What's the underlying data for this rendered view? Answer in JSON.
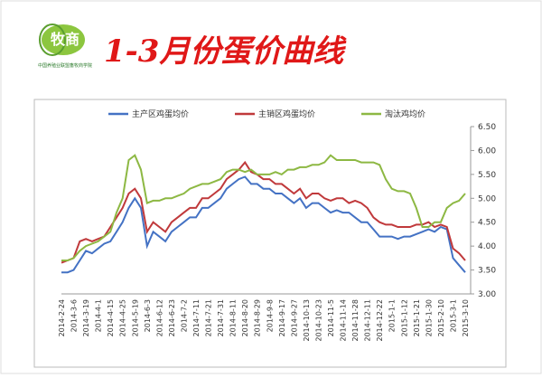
{
  "header": {
    "logo_text": "牧商",
    "logo_subtitle": "中国养殖业联盟畜牧商学院",
    "title": "1-3月份蛋价曲线"
  },
  "chart_data": {
    "type": "line",
    "categories": [
      "2014-2-24",
      null,
      "2014-3-6",
      null,
      "2014-3-19",
      null,
      "2014-4-1",
      null,
      "2014-4-15",
      null,
      "2014-4-25",
      null,
      "2014-5-19",
      null,
      "2014-6-3",
      null,
      "2014-6-12",
      null,
      "2014-6-23",
      null,
      "2014-7-2",
      null,
      "2014-7-11",
      null,
      "2014-7-21",
      null,
      "2014-7-31",
      null,
      "2014-8-11",
      null,
      "2014-8-20",
      null,
      "2014-8-29",
      null,
      "2014-9-8",
      null,
      "2014-9-17",
      null,
      "2014-9-27",
      null,
      "2014-10-13",
      null,
      "2014-10-23",
      null,
      "2014-11-5",
      null,
      "2014-11-14",
      null,
      "2014-11-28",
      null,
      "2014-12-11",
      null,
      "2014-12-22",
      null,
      "2015-1-1",
      null,
      "2015-1-12",
      null,
      "2015-1-21",
      null,
      "2015-1-30",
      null,
      "2015-2-10",
      null,
      "2015-3-1",
      null,
      "2015-3-10"
    ],
    "series": [
      {
        "name": "主产区鸡蛋均价",
        "color": "#4472c4",
        "values": [
          3.45,
          3.45,
          3.5,
          3.7,
          3.9,
          3.85,
          3.95,
          4.05,
          4.1,
          4.3,
          4.5,
          4.8,
          5.0,
          4.8,
          4.0,
          4.3,
          4.2,
          4.1,
          4.3,
          4.4,
          4.5,
          4.6,
          4.6,
          4.8,
          4.8,
          4.9,
          5.0,
          5.2,
          5.3,
          5.4,
          5.45,
          5.3,
          5.3,
          5.2,
          5.2,
          5.1,
          5.1,
          5.0,
          4.9,
          5.0,
          4.8,
          4.9,
          4.9,
          4.8,
          4.7,
          4.75,
          4.7,
          4.7,
          4.6,
          4.5,
          4.5,
          4.35,
          4.2,
          4.2,
          4.2,
          4.15,
          4.2,
          4.2,
          4.25,
          4.3,
          4.35,
          4.3,
          4.4,
          4.35,
          3.75,
          3.6,
          3.45
        ]
      },
      {
        "name": "主销区鸡蛋均价",
        "color": "#c0393b",
        "values": [
          3.65,
          3.7,
          3.75,
          4.1,
          4.15,
          4.1,
          4.15,
          4.2,
          4.4,
          4.6,
          4.8,
          5.1,
          5.2,
          5.0,
          4.3,
          4.5,
          4.4,
          4.3,
          4.5,
          4.6,
          4.7,
          4.8,
          4.8,
          5.0,
          5.0,
          5.1,
          5.2,
          5.4,
          5.5,
          5.6,
          5.75,
          5.55,
          5.5,
          5.4,
          5.4,
          5.3,
          5.3,
          5.2,
          5.1,
          5.2,
          5.0,
          5.1,
          5.1,
          5.0,
          4.95,
          5.0,
          5.0,
          4.9,
          4.95,
          4.9,
          4.8,
          4.6,
          4.5,
          4.45,
          4.45,
          4.4,
          4.4,
          4.4,
          4.45,
          4.45,
          4.5,
          4.4,
          4.45,
          4.4,
          3.95,
          3.85,
          3.7
        ]
      },
      {
        "name": "淘汰鸡均价",
        "color": "#8db843",
        "values": [
          3.7,
          3.7,
          3.75,
          3.9,
          4.0,
          4.05,
          4.1,
          4.2,
          4.3,
          4.7,
          5.0,
          5.8,
          5.9,
          5.6,
          4.9,
          4.95,
          4.95,
          5.0,
          5.0,
          5.05,
          5.1,
          5.2,
          5.25,
          5.3,
          5.3,
          5.35,
          5.4,
          5.55,
          5.6,
          5.6,
          5.55,
          5.6,
          5.5,
          5.5,
          5.5,
          5.55,
          5.5,
          5.6,
          5.6,
          5.65,
          5.65,
          5.7,
          5.7,
          5.75,
          5.9,
          5.8,
          5.8,
          5.8,
          5.8,
          5.75,
          5.75,
          5.75,
          5.7,
          5.4,
          5.2,
          5.15,
          5.15,
          5.1,
          4.8,
          4.4,
          4.4,
          4.5,
          4.5,
          4.8,
          4.9,
          4.95,
          5.1
        ]
      }
    ],
    "ylim": [
      3,
      6.5
    ],
    "yticks": [
      {
        "value": 3,
        "label": "3.00"
      },
      {
        "value": 3.5,
        "label": "3.50"
      },
      {
        "value": 4,
        "label": "4.00"
      },
      {
        "value": 4.5,
        "label": "4.50"
      },
      {
        "value": 5,
        "label": "5.00"
      },
      {
        "value": 5.5,
        "label": "5.50"
      },
      {
        "value": 6,
        "label": "6.00"
      },
      {
        "value": 6.5,
        "label": "6.50"
      }
    ],
    "grid": false,
    "legend": "top"
  }
}
